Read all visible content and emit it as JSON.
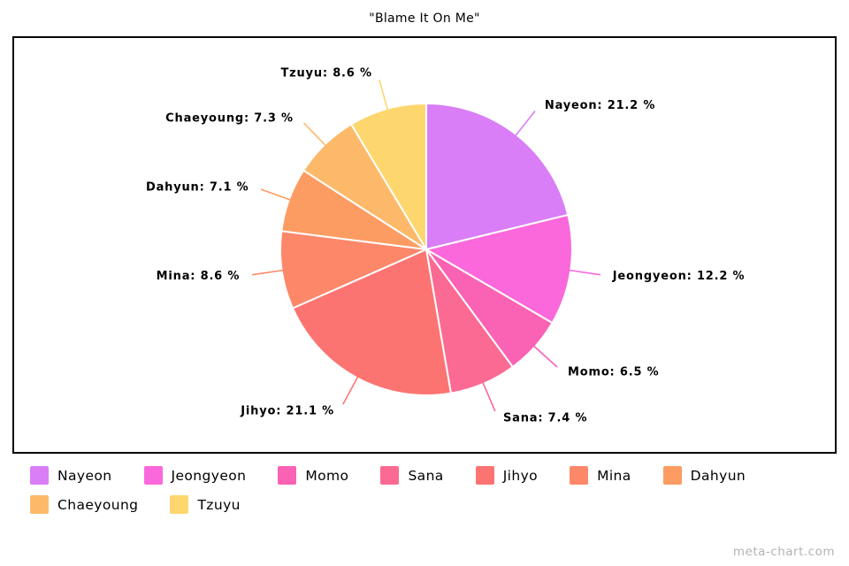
{
  "title": "\"Blame It On Me\"",
  "watermark": "meta-chart.com",
  "chart_data": {
    "type": "pie",
    "title": "\"Blame It On Me\"",
    "categories": [
      "Nayeon",
      "Jeongyeon",
      "Momo",
      "Sana",
      "Jihyo",
      "Mina",
      "Dahyun",
      "Chaeyoung",
      "Tzuyu"
    ],
    "values": [
      21.2,
      12.2,
      6.5,
      7.4,
      21.1,
      8.6,
      7.1,
      7.3,
      8.6
    ],
    "point_labels": [
      "Nayeon: 21.2 %",
      "Jeongyeon: 12.2 %",
      "Momo: 6.5 %",
      "Sana: 7.4 %",
      "Jihyo: 21.1 %",
      "Mina: 8.6 %",
      "Dahyun: 7.1 %",
      "Chaeyoung: 7.3 %",
      "Tzuyu: 8.6 %"
    ],
    "colors": [
      "#d97ef6",
      "#fa68dc",
      "#fa62b4",
      "#fb6a92",
      "#fc7472",
      "#fd8769",
      "#fd9c62",
      "#fdb96a",
      "#fdd76e"
    ],
    "start_angle_deg": 0,
    "direction": "clockwise",
    "slice_border_color": "#ffffff",
    "legend_position": "bottom",
    "legend_items": [
      "Nayeon",
      "Jeongyeon",
      "Momo",
      "Sana",
      "Jihyo",
      "Mina",
      "Dahyun",
      "Chaeyoung",
      "Tzuyu"
    ]
  }
}
